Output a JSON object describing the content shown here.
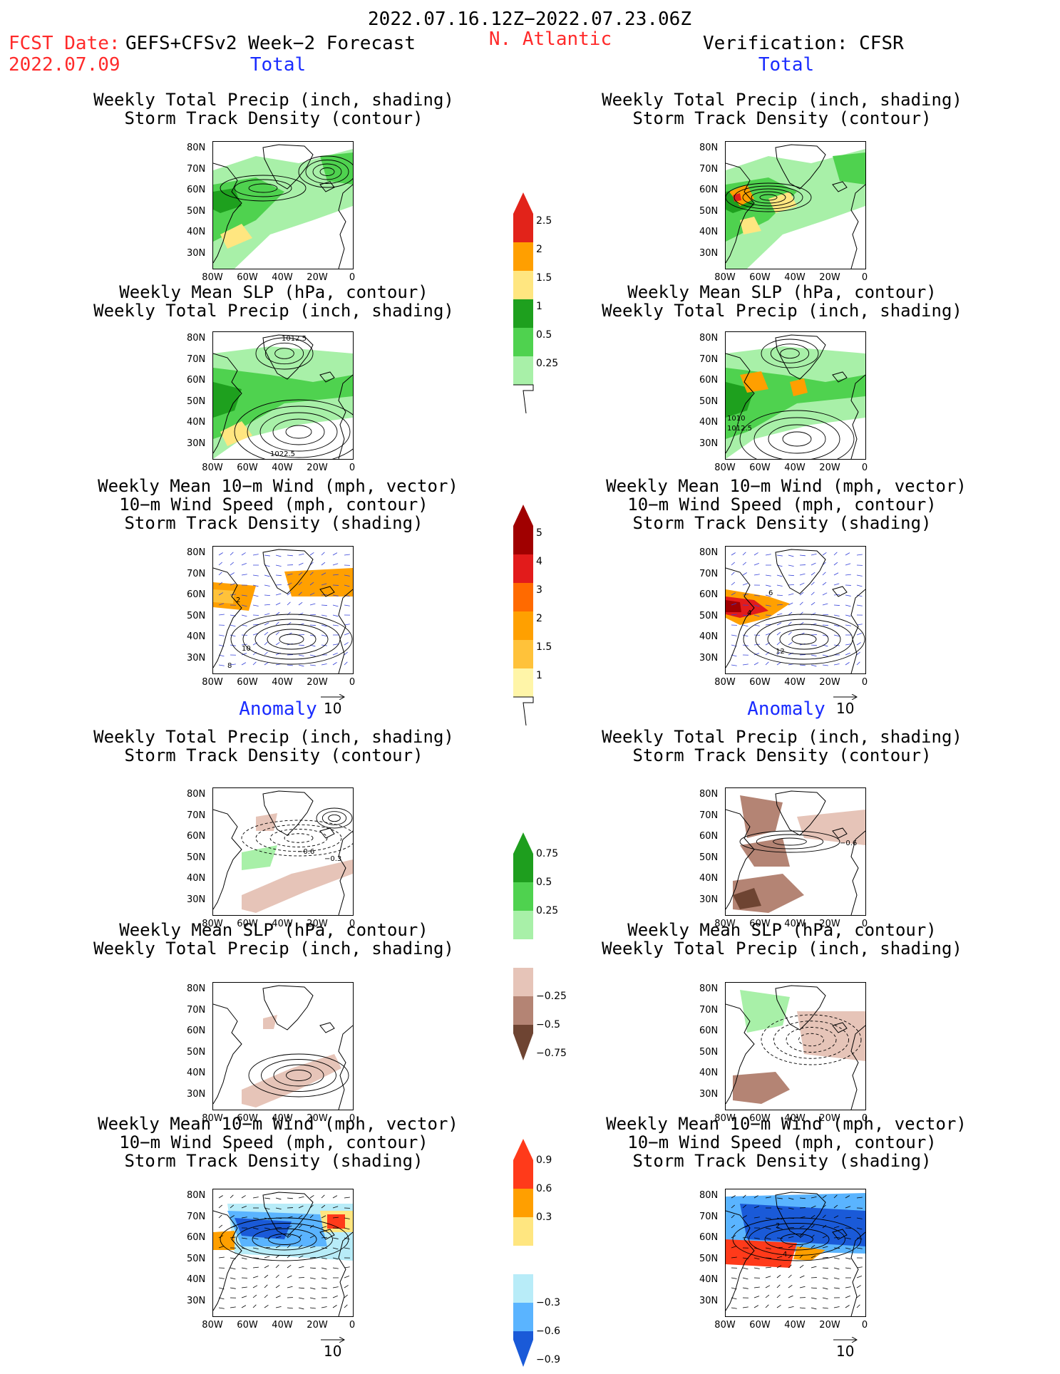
{
  "header": {
    "period": "2022.07.16.12Z−2022.07.23.06Z",
    "fcst_label": "FCST Date:",
    "fcst_model": "GEFS+CFSv2 Week−2 Forecast",
    "fcst_date": "2022.07.09",
    "region": "N. Atlantic",
    "verification": "Verification: CFSR"
  },
  "sections": {
    "total": "Total",
    "anomaly": "Anomaly"
  },
  "titles": {
    "precip_storm": [
      "Weekly Total Precip (inch, shading)",
      "Storm Track Density (contour)"
    ],
    "slp_precip": [
      "Weekly Mean SLP (hPa, contour)",
      "Weekly Total Precip (inch, shading)"
    ],
    "wind_storm": [
      "Weekly Mean 10−m Wind (mph, vector)",
      "10−m Wind Speed (mph, contour)",
      "Storm Track Density (shading)"
    ]
  },
  "axes": {
    "lat_ticks": [
      "80N",
      "70N",
      "60N",
      "50N",
      "40N",
      "30N"
    ],
    "lon_ticks": [
      "80W",
      "60W",
      "40W",
      "20W",
      "0"
    ]
  },
  "vector_ref": "10",
  "contour_labels": {
    "slp_fcst_top": "1012.5",
    "slp_fcst_bottom": "1022.5",
    "slp_obs_a": "1010",
    "slp_obs_b": "1012.5",
    "anom_fcst_a": "−0.6",
    "anom_fcst_b": "−0.3",
    "anom_obs": "−0.6",
    "wind_fcst_a": "2",
    "wind_fcst_b": "10",
    "wind_fcst_c": "8",
    "wind_obs_a": "6",
    "wind_obs_b": "12",
    "wind_obs_c": "4"
  },
  "colorbars": {
    "precip_total": [
      "2.5",
      "2",
      "1.5",
      "1",
      "0.5",
      "0.25"
    ],
    "storm_total": [
      "5",
      "4",
      "3",
      "2",
      "1.5",
      "1"
    ],
    "precip_anom": [
      "0.75",
      "0.5",
      "0.25",
      "−0.25",
      "−0.5",
      "−0.75"
    ],
    "storm_anom": [
      "0.9",
      "0.6",
      "0.3",
      "−0.3",
      "−0.6",
      "−0.9"
    ]
  },
  "colors": {
    "precip_total": [
      "#e2231a",
      "#ff9f00",
      "#ffe680",
      "#1ea01e",
      "#4fd24f",
      "#a8f0a8"
    ],
    "storm_total": [
      "#a00000",
      "#e21b1b",
      "#ff6a00",
      "#ffa000",
      "#ffc23a",
      "#fff5a8"
    ],
    "precip_anom": [
      "#1e9e1e",
      "#4fd24f",
      "#a8f0a8",
      "#e6c4b8",
      "#b48474",
      "#6e4432"
    ],
    "storm_anom": [
      "#ff3a1a",
      "#ff9f00",
      "#ffe680",
      "#b8ecf8",
      "#5ab4ff",
      "#1a5ad8"
    ]
  }
}
